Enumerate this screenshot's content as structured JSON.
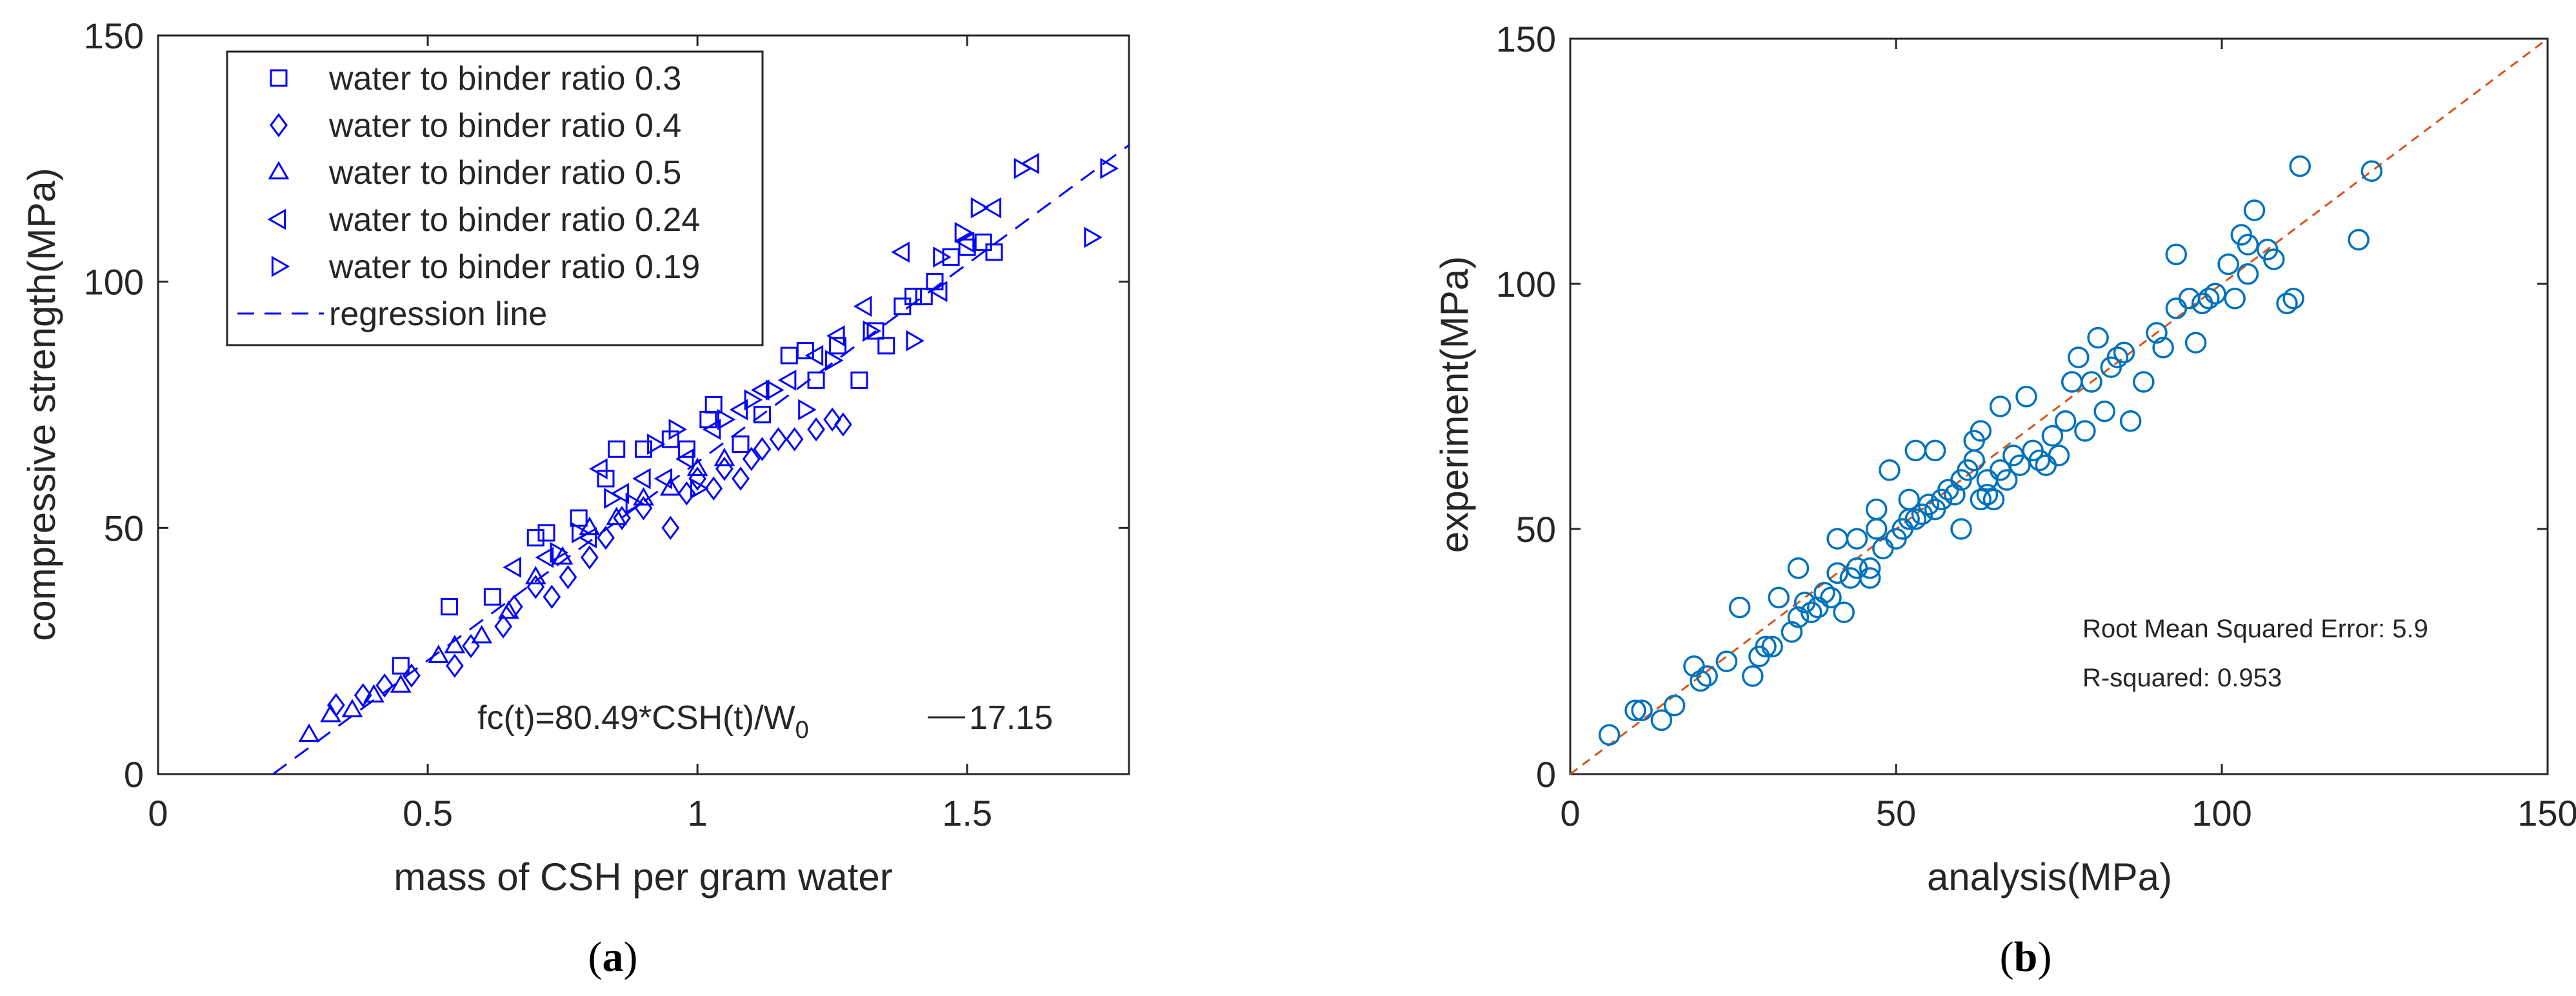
{
  "chart_data": [
    {
      "type": "scatter",
      "panel_label": "(a)",
      "xlabel": "mass of CSH per gram water",
      "ylabel": "compressive strength(MPa)",
      "xlim": [
        0,
        1.8
      ],
      "ylim": [
        0,
        150
      ],
      "xticks": [
        "0",
        "0.5",
        "1",
        "1.5"
      ],
      "yticks": [
        "0",
        "50",
        "100",
        "150"
      ],
      "grid": false,
      "legend_position": "top-left",
      "color": "#0000ff",
      "annotation": {
        "prefix": "fc(t)=80.49*CSH(t)/W",
        "subscript": "0",
        "suffix": "17.15"
      },
      "regression": {
        "slope": 80.49,
        "intercept": -17.15,
        "label": "regression line"
      },
      "series": [
        {
          "name": "water to binder ratio 0.3",
          "marker": "square",
          "points": [
            [
              0.45,
              22
            ],
            [
              0.54,
              34
            ],
            [
              0.62,
              36
            ],
            [
              0.7,
              48
            ],
            [
              0.72,
              49
            ],
            [
              0.78,
              52
            ],
            [
              0.83,
              60
            ],
            [
              0.85,
              66
            ],
            [
              0.9,
              66
            ],
            [
              0.95,
              68
            ],
            [
              0.98,
              66
            ],
            [
              1.02,
              72
            ],
            [
              1.03,
              75
            ],
            [
              1.08,
              67
            ],
            [
              1.12,
              73
            ],
            [
              1.17,
              85
            ],
            [
              1.2,
              86
            ],
            [
              1.22,
              80
            ],
            [
              1.26,
              87
            ],
            [
              1.3,
              80
            ],
            [
              1.33,
              90
            ],
            [
              1.35,
              87
            ],
            [
              1.38,
              95
            ],
            [
              1.4,
              97
            ],
            [
              1.42,
              97
            ],
            [
              1.44,
              100
            ],
            [
              1.47,
              105
            ],
            [
              1.5,
              107
            ],
            [
              1.53,
              108
            ],
            [
              1.55,
              106
            ]
          ]
        },
        {
          "name": "water to binder ratio 0.4",
          "marker": "diamond",
          "points": [
            [
              0.33,
              14
            ],
            [
              0.38,
              16
            ],
            [
              0.42,
              18
            ],
            [
              0.47,
              20
            ],
            [
              0.55,
              22
            ],
            [
              0.58,
              26
            ],
            [
              0.64,
              30
            ],
            [
              0.66,
              34
            ],
            [
              0.7,
              38
            ],
            [
              0.73,
              36
            ],
            [
              0.76,
              40
            ],
            [
              0.8,
              44
            ],
            [
              0.83,
              48
            ],
            [
              0.86,
              52
            ],
            [
              0.9,
              54
            ],
            [
              0.95,
              50
            ],
            [
              0.98,
              57
            ],
            [
              1.0,
              60
            ],
            [
              1.03,
              58
            ],
            [
              1.05,
              62
            ],
            [
              1.08,
              60
            ],
            [
              1.1,
              64
            ],
            [
              1.12,
              66
            ],
            [
              1.15,
              68
            ],
            [
              1.18,
              68
            ],
            [
              1.22,
              70
            ],
            [
              1.25,
              72
            ],
            [
              1.27,
              71
            ]
          ]
        },
        {
          "name": "water to binder ratio 0.5",
          "marker": "triangle-up",
          "points": [
            [
              0.28,
              8
            ],
            [
              0.32,
              12
            ],
            [
              0.36,
              13
            ],
            [
              0.4,
              16
            ],
            [
              0.45,
              18
            ],
            [
              0.52,
              24
            ],
            [
              0.55,
              26
            ],
            [
              0.6,
              28
            ],
            [
              0.65,
              33
            ],
            [
              0.7,
              40
            ],
            [
              0.75,
              44
            ],
            [
              0.8,
              50
            ],
            [
              0.85,
              52
            ],
            [
              0.9,
              56
            ],
            [
              0.95,
              58
            ],
            [
              1.0,
              62
            ],
            [
              1.05,
              64
            ]
          ]
        },
        {
          "name": "water to binder ratio 0.24",
          "marker": "triangle-left",
          "points": [
            [
              0.66,
              42
            ],
            [
              0.72,
              44
            ],
            [
              0.8,
              48
            ],
            [
              0.82,
              62
            ],
            [
              0.86,
              57
            ],
            [
              0.9,
              60
            ],
            [
              0.94,
              60
            ],
            [
              0.98,
              64
            ],
            [
              1.03,
              70
            ],
            [
              1.08,
              74
            ],
            [
              1.12,
              78
            ],
            [
              1.17,
              80
            ],
            [
              1.22,
              85
            ],
            [
              1.26,
              89
            ],
            [
              1.31,
              95
            ],
            [
              1.38,
              106
            ],
            [
              1.45,
              98
            ],
            [
              1.5,
              108
            ],
            [
              1.55,
              115
            ],
            [
              1.62,
              124
            ]
          ]
        },
        {
          "name": "water to binder ratio 0.19",
          "marker": "triangle-right",
          "points": [
            [
              0.74,
              45
            ],
            [
              0.78,
              49
            ],
            [
              0.84,
              56
            ],
            [
              0.88,
              55
            ],
            [
              0.92,
              67
            ],
            [
              0.96,
              70
            ],
            [
              1.0,
              58
            ],
            [
              1.05,
              72
            ],
            [
              1.1,
              76
            ],
            [
              1.14,
              78
            ],
            [
              1.2,
              74
            ],
            [
              1.25,
              84
            ],
            [
              1.32,
              90
            ],
            [
              1.4,
              88
            ],
            [
              1.45,
              105
            ],
            [
              1.49,
              110
            ],
            [
              1.52,
              115
            ],
            [
              1.6,
              123
            ],
            [
              1.73,
              109
            ],
            [
              1.76,
              123
            ]
          ]
        }
      ],
      "legend": [
        "water to binder ratio 0.3",
        "water to binder ratio 0.4",
        "water to binder ratio 0.5",
        "water to binder ratio 0.24",
        "water to binder ratio 0.19",
        "regression line"
      ]
    },
    {
      "type": "scatter",
      "panel_label": "(b)",
      "xlabel": "analysis(MPa)",
      "ylabel": "experiment(MPa)",
      "xlim": [
        0,
        150
      ],
      "ylim": [
        0,
        150
      ],
      "xticks": [
        "0",
        "50",
        "100",
        "150"
      ],
      "yticks": [
        "0",
        "50",
        "100",
        "150"
      ],
      "grid": false,
      "marker_color": "#0072bd",
      "line_color": "#d95319",
      "stats": [
        "Root Mean Squared Error: 5.9",
        "R-squared: 0.953"
      ],
      "points": [
        [
          6,
          8
        ],
        [
          10,
          13
        ],
        [
          11,
          13
        ],
        [
          14,
          11
        ],
        [
          16,
          14
        ],
        [
          19,
          22
        ],
        [
          20,
          19
        ],
        [
          21,
          20
        ],
        [
          24,
          23
        ],
        [
          26,
          34
        ],
        [
          28,
          20
        ],
        [
          29,
          24
        ],
        [
          30,
          26
        ],
        [
          31,
          26
        ],
        [
          32,
          36
        ],
        [
          34,
          29
        ],
        [
          35,
          32
        ],
        [
          35,
          42
        ],
        [
          36,
          35
        ],
        [
          37,
          33
        ],
        [
          38,
          34
        ],
        [
          39,
          37
        ],
        [
          40,
          36
        ],
        [
          41,
          48
        ],
        [
          41,
          41
        ],
        [
          42,
          33
        ],
        [
          43,
          40
        ],
        [
          44,
          42
        ],
        [
          44,
          48
        ],
        [
          46,
          42
        ],
        [
          46,
          40
        ],
        [
          47,
          50
        ],
        [
          47,
          54
        ],
        [
          48,
          46
        ],
        [
          49,
          62
        ],
        [
          50,
          48
        ],
        [
          51,
          50
        ],
        [
          52,
          52
        ],
        [
          52,
          56
        ],
        [
          53,
          52
        ],
        [
          53,
          66
        ],
        [
          54,
          53
        ],
        [
          55,
          55
        ],
        [
          56,
          54
        ],
        [
          56,
          66
        ],
        [
          57,
          56
        ],
        [
          58,
          58
        ],
        [
          59,
          57
        ],
        [
          60,
          50
        ],
        [
          60,
          60
        ],
        [
          61,
          62
        ],
        [
          62,
          64
        ],
        [
          62,
          68
        ],
        [
          63,
          70
        ],
        [
          63,
          56
        ],
        [
          64,
          60
        ],
        [
          64,
          57
        ],
        [
          65,
          56
        ],
        [
          66,
          62
        ],
        [
          66,
          75
        ],
        [
          67,
          60
        ],
        [
          68,
          65
        ],
        [
          69,
          63
        ],
        [
          70,
          77
        ],
        [
          71,
          66
        ],
        [
          72,
          64
        ],
        [
          73,
          63
        ],
        [
          74,
          69
        ],
        [
          75,
          65
        ],
        [
          76,
          72
        ],
        [
          77,
          80
        ],
        [
          78,
          85
        ],
        [
          79,
          70
        ],
        [
          80,
          80
        ],
        [
          81,
          89
        ],
        [
          82,
          74
        ],
        [
          83,
          83
        ],
        [
          84,
          85
        ],
        [
          85,
          86
        ],
        [
          86,
          72
        ],
        [
          88,
          80
        ],
        [
          90,
          90
        ],
        [
          91,
          87
        ],
        [
          93,
          95
        ],
        [
          93,
          106
        ],
        [
          95,
          97
        ],
        [
          96,
          88
        ],
        [
          97,
          96
        ],
        [
          98,
          97
        ],
        [
          99,
          98
        ],
        [
          101,
          104
        ],
        [
          102,
          97
        ],
        [
          103,
          110
        ],
        [
          104,
          102
        ],
        [
          104,
          108
        ],
        [
          105,
          115
        ],
        [
          107,
          107
        ],
        [
          108,
          105
        ],
        [
          110,
          96
        ],
        [
          111,
          97
        ],
        [
          112,
          124
        ],
        [
          121,
          109
        ],
        [
          123,
          123
        ]
      ]
    }
  ]
}
